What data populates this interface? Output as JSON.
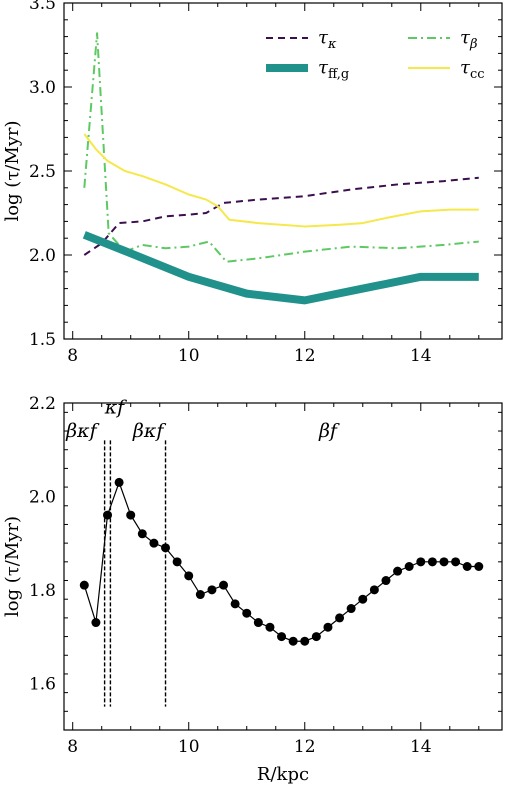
{
  "chart_data": [
    {
      "type": "line",
      "title": "",
      "xlabel": "",
      "ylabel": "log (τ/Myr)",
      "xlim": [
        7.85,
        15.4
      ],
      "ylim": [
        1.5,
        3.5
      ],
      "xticks": [
        "8",
        "10",
        "12",
        "14"
      ],
      "yticks": [
        "1.5",
        "2.0",
        "2.5",
        "3.0",
        "3.5"
      ],
      "grid": false,
      "legend": "top-right",
      "series": [
        {
          "name": "τ_κ",
          "style": "dashed",
          "color": "#3b0f4e",
          "x": [
            8.2,
            8.5,
            8.8,
            9.2,
            9.6,
            10.0,
            10.3,
            10.6,
            11.2,
            12.0,
            12.8,
            13.6,
            14.4,
            15.0
          ],
          "values": [
            2.0,
            2.07,
            2.19,
            2.2,
            2.23,
            2.24,
            2.25,
            2.31,
            2.33,
            2.35,
            2.39,
            2.42,
            2.44,
            2.46
          ]
        },
        {
          "name": "τ_β",
          "style": "dashdot",
          "color": "#5ec962",
          "x": [
            8.2,
            8.42,
            8.62,
            8.9,
            9.2,
            9.6,
            10.0,
            10.35,
            10.65,
            11.2,
            12.0,
            12.8,
            13.6,
            14.4,
            15.0
          ],
          "values": [
            2.4,
            3.32,
            2.13,
            2.02,
            2.06,
            2.04,
            2.05,
            2.08,
            1.96,
            1.98,
            2.02,
            2.05,
            2.04,
            2.06,
            2.08
          ]
        },
        {
          "name": "τ_ff,g",
          "style": "thick",
          "color": "#21918c",
          "x": [
            8.2,
            9.0,
            10.0,
            11.0,
            12.0,
            13.0,
            14.0,
            15.0
          ],
          "values": [
            2.12,
            2.01,
            1.87,
            1.77,
            1.73,
            1.8,
            1.87,
            1.87
          ]
        },
        {
          "name": "τ_cc",
          "style": "solid",
          "color": "#f5e84a",
          "x": [
            8.2,
            8.4,
            8.6,
            8.9,
            9.2,
            9.6,
            10.0,
            10.3,
            10.5,
            10.7,
            11.2,
            12.0,
            12.6,
            13.0,
            13.4,
            14.0,
            14.5,
            15.0
          ],
          "values": [
            2.72,
            2.63,
            2.56,
            2.5,
            2.47,
            2.42,
            2.36,
            2.33,
            2.29,
            2.21,
            2.19,
            2.17,
            2.18,
            2.19,
            2.22,
            2.26,
            2.27,
            2.27
          ]
        }
      ]
    },
    {
      "type": "scatter",
      "title": "",
      "xlabel": "R/kpc",
      "ylabel": "log (τ/Myr)",
      "xlim": [
        7.85,
        15.4
      ],
      "ylim": [
        1.5,
        2.2
      ],
      "xticks": [
        "8",
        "10",
        "12",
        "14"
      ],
      "yticks": [
        "1.6",
        "1.8",
        "2.0",
        "2.2"
      ],
      "grid": false,
      "series": [
        {
          "name": "",
          "color": "#000000",
          "x": [
            8.2,
            8.4,
            8.6,
            8.8,
            9.0,
            9.2,
            9.4,
            9.6,
            9.8,
            10.0,
            10.2,
            10.4,
            10.6,
            10.8,
            11.0,
            11.2,
            11.4,
            11.6,
            11.8,
            12.0,
            12.2,
            12.4,
            12.6,
            12.8,
            13.0,
            13.2,
            13.4,
            13.6,
            13.8,
            14.0,
            14.2,
            14.4,
            14.6,
            14.8,
            15.0
          ],
          "values": [
            1.81,
            1.73,
            1.96,
            2.03,
            1.96,
            1.92,
            1.9,
            1.89,
            1.86,
            1.83,
            1.79,
            1.8,
            1.81,
            1.77,
            1.75,
            1.73,
            1.72,
            1.7,
            1.69,
            1.69,
            1.7,
            1.72,
            1.74,
            1.76,
            1.78,
            1.8,
            1.82,
            1.84,
            1.85,
            1.86,
            1.86,
            1.86,
            1.86,
            1.85,
            1.85
          ]
        }
      ],
      "vlines": [
        8.55,
        8.65,
        9.6
      ],
      "region_labels": [
        {
          "text": "βκf",
          "x": 8.15,
          "y": 2.14
        },
        {
          "text": "κf",
          "x": 8.72,
          "y": 2.19
        },
        {
          "text": "βκf",
          "x": 9.3,
          "y": 2.14
        },
        {
          "text": "βf",
          "x": 12.4,
          "y": 2.14
        }
      ]
    }
  ]
}
